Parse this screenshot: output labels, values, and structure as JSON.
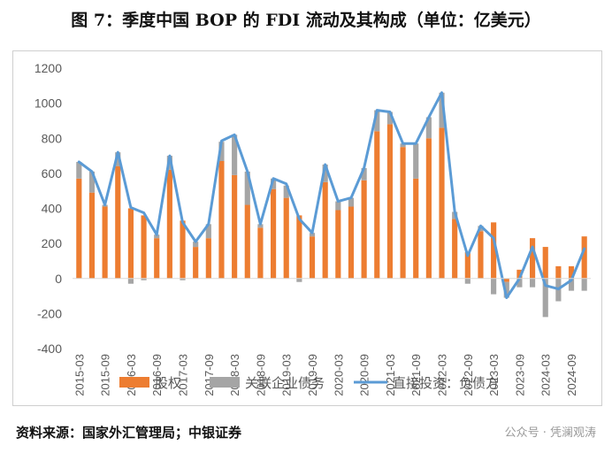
{
  "title": "图 7：季度中国 BOP 的 FDI 流动及其构成（单位：亿美元）",
  "source": "资料来源：国家外汇管理局；中银证券",
  "watermark": "公众号 · 凭澜观涛",
  "colors": {
    "equity": "#ED7D31",
    "debt": "#A5A5A5",
    "line": "#5B9BD5"
  },
  "chart_data": {
    "type": "bar",
    "stacked": true,
    "ylim": [
      -400,
      1200
    ],
    "yticks": [
      -400,
      -200,
      0,
      200,
      400,
      600,
      800,
      1000,
      1200
    ],
    "ytick_labels": [
      "-400",
      "-200",
      "0",
      "200",
      "400",
      "600",
      "800",
      "1000",
      "1200"
    ],
    "xtick_labels": [
      "2015-03",
      "2015-09",
      "2016-03",
      "2016-09",
      "2017-03",
      "2017-09",
      "2018-03",
      "2018-09",
      "2019-03",
      "2019-09",
      "2020-03",
      "2020-09",
      "2021-03",
      "2021-09",
      "2022-03",
      "2022-09",
      "2023-03",
      "2023-09",
      "2024-03",
      "2024-09"
    ],
    "categories": [
      "2015-03",
      "2015-06",
      "2015-09",
      "2015-12",
      "2016-03",
      "2016-06",
      "2016-09",
      "2016-12",
      "2017-03",
      "2017-06",
      "2017-09",
      "2017-12",
      "2018-03",
      "2018-06",
      "2018-09",
      "2018-12",
      "2019-03",
      "2019-06",
      "2019-09",
      "2019-12",
      "2020-03",
      "2020-06",
      "2020-09",
      "2020-12",
      "2021-03",
      "2021-06",
      "2021-09",
      "2021-12",
      "2022-03",
      "2022-06",
      "2022-09",
      "2022-12",
      "2023-03",
      "2023-06",
      "2023-09",
      "2023-12",
      "2024-03",
      "2024-06",
      "2024-09",
      "2024-12"
    ],
    "grid": false,
    "legend_position": "bottom",
    "series": [
      {
        "name": "股权",
        "kind": "bar",
        "values": [
          570,
          490,
          410,
          640,
          400,
          360,
          230,
          620,
          330,
          180,
          230,
          670,
          590,
          420,
          290,
          510,
          460,
          360,
          240,
          550,
          390,
          410,
          560,
          840,
          880,
          750,
          570,
          800,
          860,
          340,
          150,
          270,
          320,
          -20,
          50,
          230,
          180,
          70,
          70,
          240
        ]
      },
      {
        "name": "关联企业债务",
        "kind": "bar",
        "values": [
          95,
          120,
          10,
          80,
          -30,
          -10,
          20,
          80,
          -10,
          30,
          80,
          110,
          230,
          190,
          20,
          60,
          70,
          -20,
          20,
          100,
          50,
          50,
          70,
          120,
          70,
          20,
          200,
          120,
          200,
          40,
          -30,
          30,
          -90,
          -90,
          -50,
          -50,
          -220,
          -130,
          -70,
          -70
        ]
      },
      {
        "name": "直接投资：负债方",
        "kind": "line",
        "values": [
          665,
          610,
          420,
          720,
          405,
          375,
          250,
          700,
          320,
          210,
          310,
          785,
          820,
          610,
          310,
          570,
          540,
          340,
          260,
          650,
          440,
          460,
          630,
          960,
          950,
          770,
          770,
          920,
          1060,
          380,
          130,
          300,
          230,
          -110,
          0,
          180,
          -40,
          -60,
          -10,
          170
        ]
      }
    ]
  }
}
